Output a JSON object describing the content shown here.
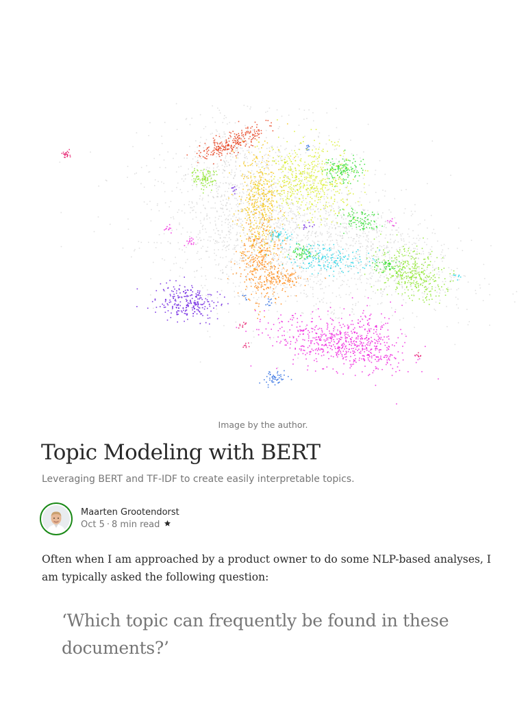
{
  "hero_image": {
    "caption": "Image by the author."
  },
  "article": {
    "title": "Topic Modeling with BERT",
    "subtitle": "Leveraging BERT and TF-IDF to create easily interpretable topics.",
    "author": {
      "name": "Maarten Grootendorst",
      "date": "Oct 5",
      "separator": "·",
      "read_time": "8 min read",
      "member_icon": "star-icon"
    },
    "paragraph": "Often when I am approached by a product owner to do some NLP-based analyses, I am typically asked the following question:",
    "pullquote": "‘Which topic can frequently be found in these documents?’"
  },
  "colors": {
    "text": "#292929",
    "muted": "#757575",
    "avatar_ring": "#1a8917",
    "clusters": [
      "#e8401c",
      "#f5c518",
      "#d9ef2a",
      "#33dd33",
      "#8ee62e",
      "#ff8c1a",
      "#22d3e6",
      "#2a6be0",
      "#6a1be0",
      "#ee22dd",
      "#e6196b",
      "#bdbdbd"
    ]
  }
}
